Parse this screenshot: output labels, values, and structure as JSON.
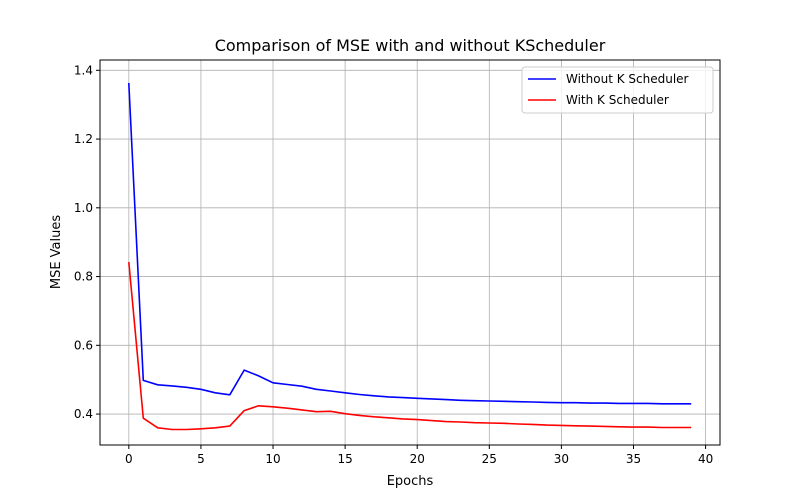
{
  "chart_data": {
    "type": "line",
    "title": "Comparison of MSE with and without KScheduler",
    "xlabel": "Epochs",
    "ylabel": "MSE Values",
    "xlim": [
      -2,
      41
    ],
    "ylim": [
      0.31,
      1.43
    ],
    "xticks": [
      0,
      5,
      10,
      15,
      20,
      25,
      30,
      35,
      40
    ],
    "yticks": [
      0.4,
      0.6,
      0.8,
      1.0,
      1.2,
      1.4
    ],
    "xtick_labels": [
      "0",
      "5",
      "10",
      "15",
      "20",
      "25",
      "30",
      "35",
      "40"
    ],
    "ytick_labels": [
      "0.4",
      "0.6",
      "0.8",
      "1.0",
      "1.2",
      "1.4"
    ],
    "grid": true,
    "legend_position": "top-right",
    "x": [
      0,
      1,
      2,
      3,
      4,
      5,
      6,
      7,
      8,
      9,
      10,
      11,
      12,
      13,
      14,
      15,
      16,
      17,
      18,
      19,
      20,
      21,
      22,
      23,
      24,
      25,
      26,
      27,
      28,
      29,
      30,
      31,
      32,
      33,
      34,
      35,
      36,
      37,
      38,
      39
    ],
    "series": [
      {
        "name": "Without K Scheduler",
        "color": "#0000ff",
        "values": [
          1.363,
          0.498,
          0.485,
          0.482,
          0.478,
          0.472,
          0.462,
          0.456,
          0.528,
          0.511,
          0.491,
          0.486,
          0.481,
          0.472,
          0.467,
          0.462,
          0.457,
          0.453,
          0.45,
          0.448,
          0.446,
          0.444,
          0.442,
          0.44,
          0.439,
          0.438,
          0.437,
          0.436,
          0.435,
          0.434,
          0.433,
          0.433,
          0.432,
          0.432,
          0.431,
          0.431,
          0.431,
          0.43,
          0.43,
          0.43
        ]
      },
      {
        "name": "With K Scheduler",
        "color": "#ff0000",
        "values": [
          0.842,
          0.388,
          0.36,
          0.355,
          0.355,
          0.357,
          0.36,
          0.365,
          0.41,
          0.424,
          0.421,
          0.417,
          0.412,
          0.407,
          0.408,
          0.401,
          0.396,
          0.392,
          0.389,
          0.386,
          0.384,
          0.381,
          0.378,
          0.377,
          0.375,
          0.374,
          0.373,
          0.371,
          0.37,
          0.368,
          0.367,
          0.366,
          0.365,
          0.364,
          0.363,
          0.362,
          0.362,
          0.361,
          0.361,
          0.361
        ]
      }
    ]
  }
}
